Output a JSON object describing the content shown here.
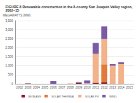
{
  "chart_data": {
    "type": "bar",
    "title": "FIGURE 8 Renewable construction in the 8-county San Joaquin Valley region, 2002–15",
    "y_label": "MEGAWATTS (MW)",
    "categories": [
      "2002",
      "2003",
      "2004",
      "2005",
      "2006",
      "2007",
      "2008",
      "2009",
      "2010",
      "2011",
      "2012",
      "2013",
      "2014",
      "2015"
    ],
    "series": [
      {
        "name": "BIOMASS",
        "color": "#8c1d2f",
        "values": [
          0,
          20,
          0,
          0,
          0,
          0,
          0,
          40,
          0,
          60,
          80,
          0,
          0,
          0
        ]
      },
      {
        "name": "SOLAR THERMAL",
        "color": "#e07b39",
        "values": [
          0,
          0,
          0,
          0,
          0,
          0,
          0,
          0,
          0,
          0,
          1000,
          0,
          0,
          0
        ]
      },
      {
        "name": "SOLAR PV",
        "color": "#f2b28a",
        "values": [
          0,
          0,
          0,
          0,
          0,
          0,
          20,
          0,
          30,
          1600,
          1400,
          1000,
          1100,
          0
        ]
      },
      {
        "name": "WIND",
        "color": "#7b5aa6",
        "values": [
          0,
          0,
          0,
          0,
          150,
          0,
          0,
          50,
          150,
          600,
          700,
          100,
          100,
          0
        ]
      }
    ],
    "ylim": [
      0,
      3500
    ],
    "yticks": [
      0,
      500,
      {
        "value": 1000,
        "label": "1,000"
      },
      {
        "value": 1500,
        "label": "1,500"
      },
      {
        "value": 2000,
        "label": "2,000"
      },
      {
        "value": 2500,
        "label": "2,500"
      },
      {
        "value": 3000,
        "label": "3,000"
      },
      {
        "value": 3500,
        "label": "3,500"
      }
    ],
    "stacked": true,
    "grid": true,
    "legend": "bottom"
  }
}
